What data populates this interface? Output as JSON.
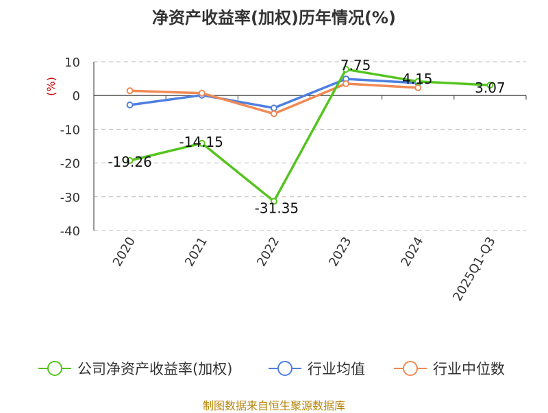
{
  "chart_data": {
    "type": "line",
    "title": "净资产收益率(加权)历年情况(%)",
    "ylabel": "(%)",
    "xlabel": "",
    "categories": [
      "2020",
      "2021",
      "2022",
      "2023",
      "2024",
      "2025Q1-Q3"
    ],
    "ylim": [
      -40,
      10
    ],
    "yticks": [
      10,
      0,
      -10,
      -20,
      -30,
      -40
    ],
    "grid": true,
    "legend": "bottom",
    "series": [
      {
        "name": "公司净资产收益率(加权)",
        "color": "#55c41f",
        "values": [
          -19.26,
          -14.15,
          -31.35,
          7.75,
          4.15,
          3.07
        ],
        "labels": [
          "-19.26",
          "-14.15",
          "-31.35",
          "7.75",
          "4.15",
          "3.07"
        ]
      },
      {
        "name": "行业均值",
        "color": "#4e7fe0",
        "values": [
          -2.8,
          0.1,
          -3.7,
          4.9,
          3.7,
          null
        ]
      },
      {
        "name": "行业中位数",
        "color": "#f08a54",
        "values": [
          1.4,
          0.7,
          -5.4,
          3.5,
          2.3,
          null
        ]
      }
    ]
  },
  "footer": {
    "source": "制图数据来自恒生聚源数据库"
  },
  "colors": {
    "axis": "#333333",
    "grid": "#bbbbbb",
    "ylabel": "#cc0000"
  }
}
